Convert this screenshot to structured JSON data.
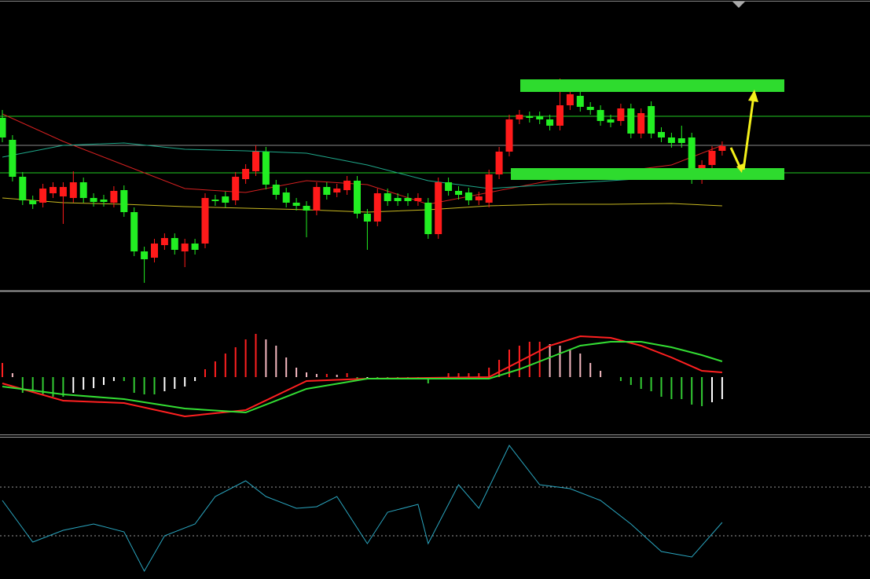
{
  "chart_data": [
    {
      "type": "candlestick",
      "up_color": "#ff1a1a",
      "down_color": "#22ee22",
      "ylim": [
        0,
        370
      ],
      "yticks": [
        222,
        185,
        150
      ],
      "grid": true,
      "grid_colors": [
        "#22cc22",
        "#888888",
        "#22cc22"
      ],
      "open": [
        220,
        192,
        145,
        115,
        112,
        124,
        120,
        118,
        138,
        118,
        116,
        112,
        128,
        100,
        50,
        42,
        58,
        67,
        50,
        60,
        60,
        116,
        120,
        115,
        142,
        152,
        177,
        135,
        125,
        112,
        108,
        102,
        132,
        125,
        128,
        140,
        98,
        88,
        124,
        118,
        118,
        114,
        112,
        72,
        138,
        127,
        125,
        115,
        112,
        148,
        177,
        218,
        222,
        222,
        218,
        210,
        236,
        248,
        234,
        230,
        218,
        216,
        232,
        200,
        235,
        202,
        195,
        194,
        195,
        142,
        160,
        178
      ],
      "close": [
        195,
        145,
        115,
        110,
        130,
        132,
        132,
        138,
        118,
        113,
        113,
        127,
        100,
        50,
        40,
        60,
        67,
        52,
        60,
        52,
        118,
        114,
        112,
        145,
        155,
        177,
        135,
        122,
        112,
        108,
        102,
        132,
        122,
        130,
        140,
        98,
        88,
        124,
        114,
        114,
        114,
        118,
        72,
        138,
        127,
        122,
        115,
        120,
        148,
        177,
        218,
        224,
        220,
        218,
        210,
        236,
        250,
        234,
        230,
        216,
        214,
        232,
        200,
        226,
        200,
        195,
        188,
        188,
        155,
        160,
        178,
        184
      ],
      "high": [
        230,
        198,
        151,
        121,
        136,
        138,
        138,
        152,
        144,
        124,
        122,
        133,
        134,
        106,
        56,
        66,
        73,
        73,
        66,
        66,
        124,
        122,
        126,
        151,
        161,
        185,
        183,
        141,
        131,
        118,
        114,
        138,
        138,
        136,
        146,
        146,
        104,
        130,
        130,
        124,
        124,
        124,
        118,
        144,
        144,
        133,
        131,
        126,
        154,
        183,
        224,
        230,
        228,
        228,
        224,
        270,
        256,
        254,
        240,
        236,
        224,
        238,
        238,
        232,
        241,
        208,
        201,
        210,
        201,
        166,
        184,
        190
      ],
      "low": [
        189,
        139,
        109,
        104,
        106,
        118,
        85,
        112,
        112,
        107,
        107,
        106,
        94,
        44,
        10,
        36,
        52,
        46,
        30,
        46,
        54,
        108,
        106,
        109,
        136,
        146,
        129,
        116,
        106,
        102,
        68,
        96,
        116,
        119,
        122,
        92,
        52,
        82,
        108,
        108,
        108,
        108,
        66,
        66,
        121,
        116,
        109,
        109,
        106,
        142,
        171,
        212,
        214,
        212,
        204,
        204,
        230,
        228,
        224,
        210,
        208,
        210,
        194,
        194,
        194,
        189,
        182,
        182,
        136,
        136,
        154,
        172
      ],
      "series": [
        {
          "color": "#d42020",
          "x": [
            0,
            6,
            12,
            18,
            24,
            30,
            36,
            42,
            48,
            54,
            60,
            66,
            71
          ],
          "values": [
            225,
            190,
            160,
            130,
            125,
            140,
            135,
            110,
            125,
            140,
            150,
            160,
            185
          ]
        },
        {
          "color": "#1fa88a",
          "x": [
            0,
            6,
            12,
            18,
            24,
            30,
            36,
            42,
            48,
            54,
            60,
            66,
            71
          ],
          "values": [
            170,
            185,
            188,
            180,
            178,
            175,
            160,
            140,
            130,
            135,
            140,
            145,
            150
          ]
        },
        {
          "color": "#c8b820",
          "x": [
            0,
            6,
            12,
            18,
            24,
            30,
            36,
            42,
            48,
            54,
            60,
            66,
            71
          ],
          "values": [
            118,
            112,
            110,
            107,
            105,
            103,
            100,
            103,
            108,
            110,
            110,
            111,
            108
          ]
        }
      ]
    },
    {
      "type": "macd",
      "ylim": [
        -73,
        108
      ],
      "values": [
        18,
        5,
        -20,
        -20,
        -22,
        -25,
        -25,
        -20,
        -16,
        -14,
        -10,
        -5,
        -5,
        -20,
        -22,
        -22,
        -18,
        -15,
        -12,
        -5,
        10,
        20,
        30,
        38,
        48,
        55,
        48,
        40,
        25,
        12,
        6,
        4,
        4,
        3,
        5,
        -3,
        -2,
        -2,
        -2,
        -2,
        -2,
        -2,
        -8,
        -3,
        5,
        5,
        5,
        5,
        12,
        22,
        35,
        40,
        45,
        45,
        42,
        40,
        35,
        30,
        18,
        8,
        0,
        -5,
        -10,
        -15,
        -18,
        -25,
        -28,
        -28,
        -35,
        -37,
        -32,
        -28
      ],
      "colors": {
        "rise_up": "#ff2020",
        "fall_up": "#f4b8c0",
        "fall_down": "#33cc33",
        "rise_down": "#ffffff"
      },
      "series": [
        {
          "color": "#ff2020",
          "x": [
            0,
            6,
            12,
            18,
            24,
            30,
            36,
            42,
            48,
            51,
            54,
            57,
            60,
            63,
            66,
            69,
            71
          ],
          "values": [
            -8,
            -30,
            -33,
            -50,
            -42,
            -5,
            -2,
            -1,
            0,
            20,
            40,
            52,
            50,
            40,
            25,
            8,
            6
          ]
        },
        {
          "color": "#33dd33",
          "x": [
            0,
            6,
            12,
            18,
            24,
            30,
            36,
            42,
            48,
            51,
            54,
            57,
            60,
            63,
            66,
            69,
            71
          ],
          "values": [
            -12,
            -22,
            -28,
            -40,
            -45,
            -15,
            -2,
            -2,
            -2,
            10,
            25,
            40,
            45,
            45,
            38,
            28,
            20
          ]
        }
      ]
    },
    {
      "type": "line",
      "ylim": [
        0,
        181
      ],
      "yticks": [
        117,
        55
      ],
      "grid": true,
      "series": [
        {
          "color": "#2aa6c0",
          "x": [
            0,
            3,
            6,
            9,
            12,
            14,
            16,
            19,
            21,
            24,
            26,
            29,
            31,
            33,
            36,
            38,
            41,
            42,
            45,
            47,
            50,
            53,
            56,
            59,
            62,
            65,
            68,
            71
          ],
          "values": [
            100,
            47,
            62,
            70,
            60,
            10,
            55,
            70,
            105,
            125,
            105,
            90,
            92,
            105,
            45,
            85,
            95,
            45,
            120,
            90,
            170,
            120,
            115,
            100,
            70,
            35,
            28,
            72
          ]
        }
      ]
    }
  ]
}
